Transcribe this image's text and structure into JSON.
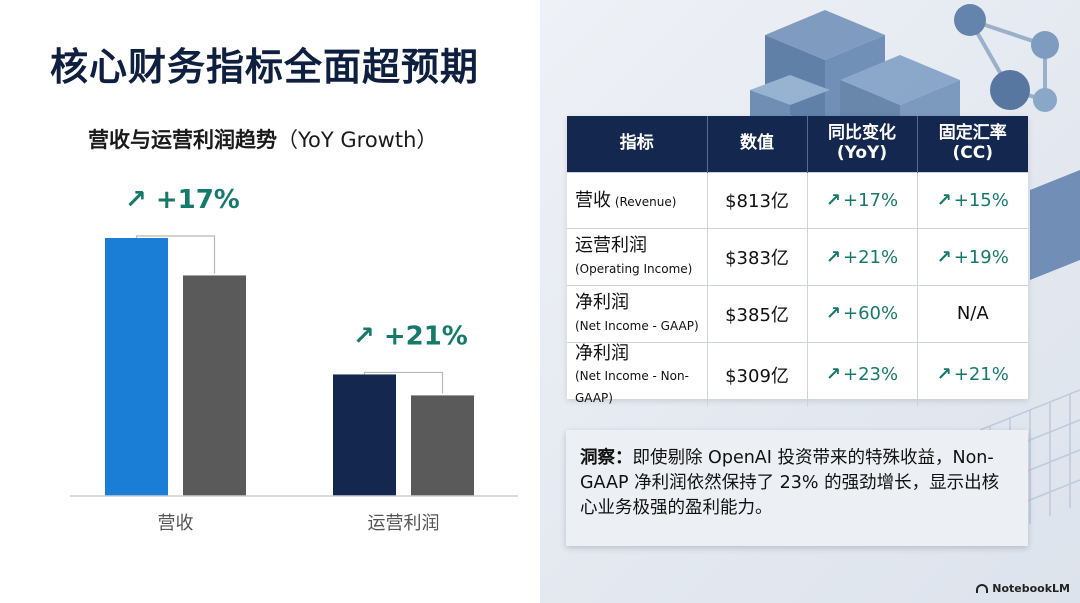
{
  "title": "核心财务指标全面超预期",
  "chart_data": {
    "type": "bar",
    "title_cn": "营收与运营利润趋势",
    "title_en": "（YoY Growth）",
    "categories": [
      "营收",
      "运营利润"
    ],
    "series": [
      {
        "values": [
          813,
          383
        ],
        "color": "#1a7dd6"
      },
      {
        "values": [
          695,
          317
        ],
        "color": "#5a5a5a"
      }
    ],
    "series_colors_by_category": [
      [
        "#1a7dd6",
        "#5a5a5a"
      ],
      [
        "#13274f",
        "#5a5a5a"
      ]
    ],
    "growth_labels": [
      "↗ +17%",
      "↗ +21%"
    ],
    "ylim": [
      0,
      813
    ],
    "grid": false
  },
  "table": {
    "headers": [
      "指标",
      "数值",
      "同比变化\n(YoY)",
      "固定汇率\n(CC)"
    ],
    "rows": [
      {
        "metric": "营收",
        "metric_sub": "(Revenue)",
        "value": "$813亿",
        "yoy": "+17%",
        "cc": "+15%"
      },
      {
        "metric": "运营利润",
        "metric_sub": "(Operating Income)",
        "value": "$383亿",
        "yoy": "+21%",
        "cc": "+19%"
      },
      {
        "metric": "净利润",
        "metric_sub": "(Net Income - GAAP)",
        "value": "$385亿",
        "yoy": "+60%",
        "cc": "N/A"
      },
      {
        "metric": "净利润",
        "metric_sub": "(Net Income - Non-GAAP)",
        "value": "$309亿",
        "yoy": "+23%",
        "cc": "+21%"
      }
    ]
  },
  "insight": {
    "label": "洞察：",
    "text": "即使剔除 OpenAI 投资带来的特殊收益，Non-GAAP 净利润依然保持了 23% 的强劲增长，显示出核心业务极强的盈利能力。"
  },
  "brand": "NotebookLM",
  "colors": {
    "navy": "#13274f",
    "blue": "#1a7dd6",
    "gray": "#5a5a5a",
    "green": "#167a6a"
  }
}
